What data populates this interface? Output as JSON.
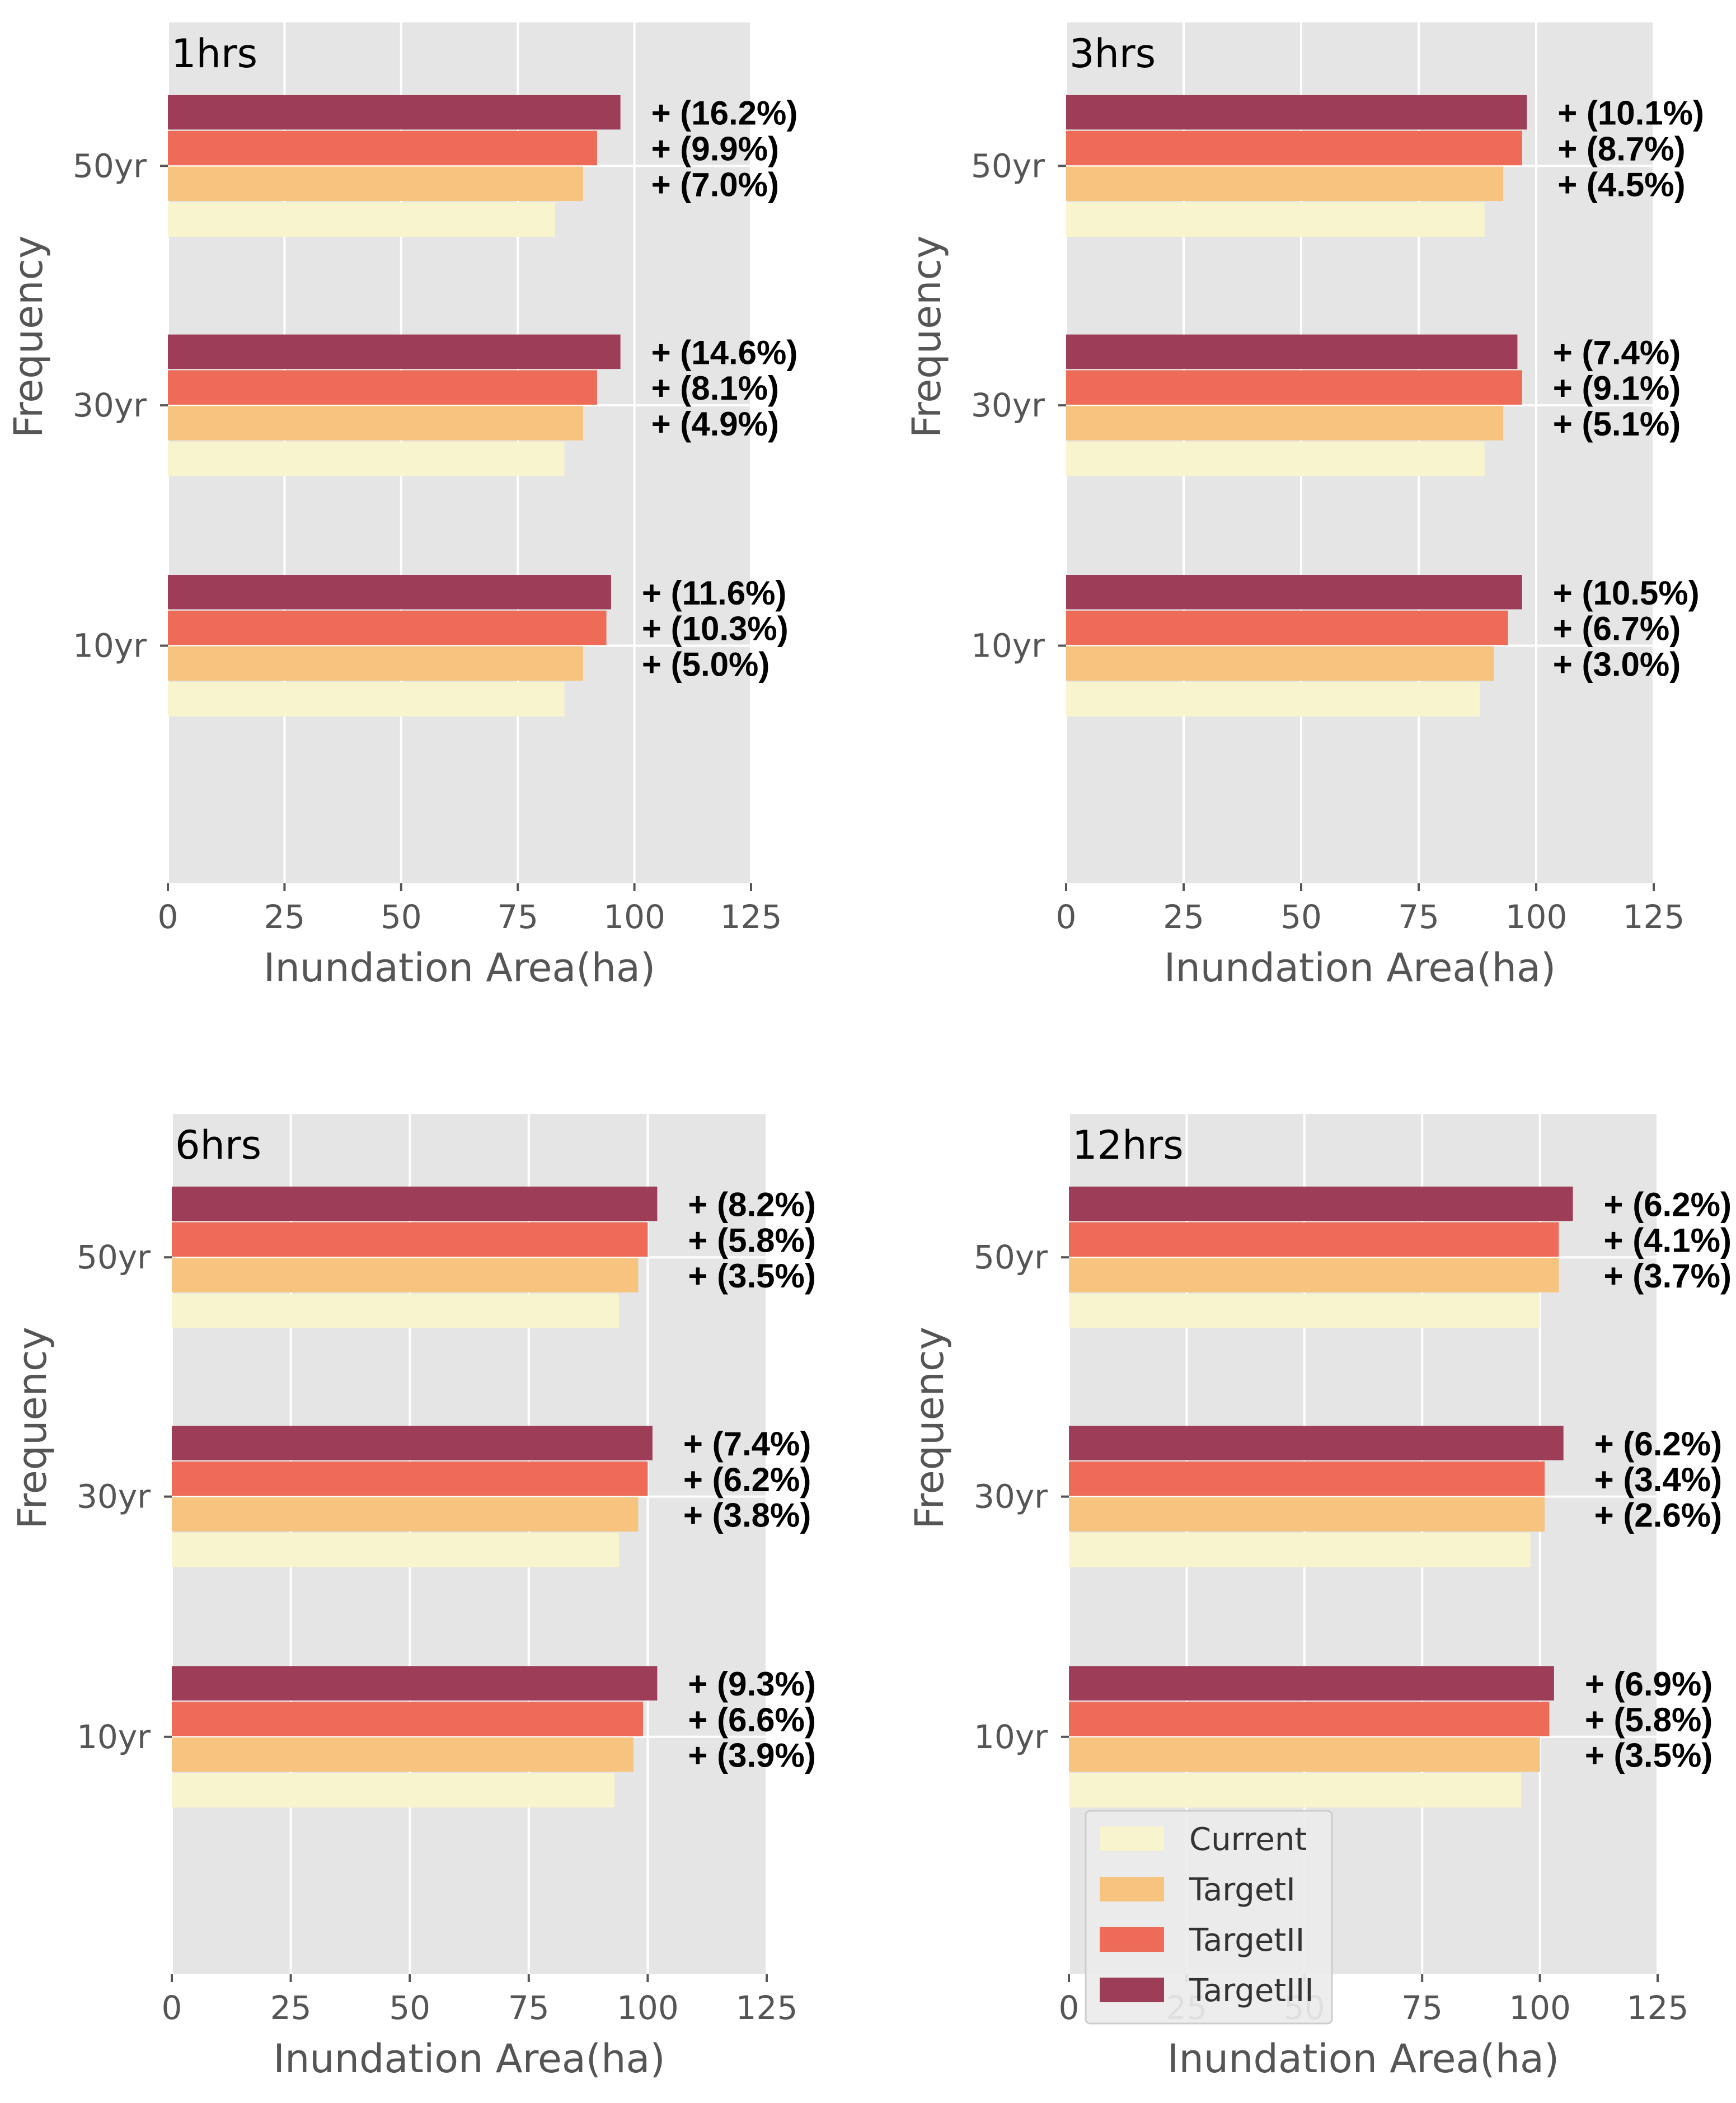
{
  "colors": {
    "panel_bg": "#e5e5e5",
    "grid": "#ffffff",
    "tick_text": "#555555",
    "label_text": "#000000",
    "series": {
      "Current": "#f7f4ce",
      "TargetI": "#f6c47f",
      "TargetII": "#ee6b57",
      "TargetIII": "#9e3d58"
    }
  },
  "chart_data": [
    {
      "type": "bar",
      "orientation": "horizontal",
      "title": "1hrs",
      "xlabel": "Inundation Area(ha)",
      "ylabel": "Frequency",
      "xlim": [
        0,
        125
      ],
      "xticks": [
        0,
        25,
        50,
        75,
        100,
        125
      ],
      "categories": [
        "10yr",
        "30yr",
        "50yr"
      ],
      "grid": true,
      "series": [
        {
          "name": "Current",
          "values": [
            85,
            85,
            83
          ]
        },
        {
          "name": "TargetI",
          "values": [
            89,
            89,
            89
          ]
        },
        {
          "name": "TargetII",
          "values": [
            94,
            92,
            92
          ]
        },
        {
          "name": "TargetIII",
          "values": [
            95,
            97,
            97
          ]
        }
      ],
      "annotations": [
        [
          "+ (5.0%)",
          "+ (10.3%)",
          "+ (11.6%)"
        ],
        [
          "+ (4.9%)",
          "+ (8.1%)",
          "+ (14.6%)"
        ],
        [
          "+ (7.0%)",
          "+ (9.9%)",
          "+ (16.2%)"
        ]
      ]
    },
    {
      "type": "bar",
      "orientation": "horizontal",
      "title": "3hrs",
      "xlabel": "Inundation Area(ha)",
      "ylabel": "Frequency",
      "xlim": [
        0,
        125
      ],
      "xticks": [
        0,
        25,
        50,
        75,
        100,
        125
      ],
      "categories": [
        "10yr",
        "30yr",
        "50yr"
      ],
      "grid": true,
      "series": [
        {
          "name": "Current",
          "values": [
            88,
            89,
            89
          ]
        },
        {
          "name": "TargetI",
          "values": [
            91,
            93,
            93
          ]
        },
        {
          "name": "TargetII",
          "values": [
            94,
            97,
            97
          ]
        },
        {
          "name": "TargetIII",
          "values": [
            97,
            96,
            98
          ]
        }
      ],
      "annotations": [
        [
          "+ (3.0%)",
          "+ (6.7%)",
          "+ (10.5%)"
        ],
        [
          "+ (5.1%)",
          "+ (9.1%)",
          "+ (7.4%)"
        ],
        [
          "+ (4.5%)",
          "+ (8.7%)",
          "+ (10.1%)"
        ]
      ]
    },
    {
      "type": "bar",
      "orientation": "horizontal",
      "title": "6hrs",
      "xlabel": "Inundation Area(ha)",
      "ylabel": "Frequency",
      "xlim": [
        0,
        125
      ],
      "xticks": [
        0,
        25,
        50,
        75,
        100,
        125
      ],
      "categories": [
        "10yr",
        "30yr",
        "50yr"
      ],
      "grid": true,
      "series": [
        {
          "name": "Current",
          "values": [
            93,
            94,
            94
          ]
        },
        {
          "name": "TargetI",
          "values": [
            97,
            98,
            98
          ]
        },
        {
          "name": "TargetII",
          "values": [
            99,
            100,
            100
          ]
        },
        {
          "name": "TargetIII",
          "values": [
            102,
            101,
            102
          ]
        }
      ],
      "annotations": [
        [
          "+ (3.9%)",
          "+ (6.6%)",
          "+ (9.3%)"
        ],
        [
          "+ (3.8%)",
          "+ (6.2%)",
          "+ (7.4%)"
        ],
        [
          "+ (3.5%)",
          "+ (5.8%)",
          "+ (8.2%)"
        ]
      ]
    },
    {
      "type": "bar",
      "orientation": "horizontal",
      "title": "12hrs",
      "xlabel": "Inundation Area(ha)",
      "ylabel": "Frequency",
      "xlim": [
        0,
        125
      ],
      "xticks": [
        0,
        25,
        50,
        75,
        100,
        125
      ],
      "categories": [
        "10yr",
        "30yr",
        "50yr"
      ],
      "grid": true,
      "legend": {
        "position": "lower-left",
        "entries": [
          "Current",
          "TargetI",
          "TargetII",
          "TargetIII"
        ]
      },
      "series": [
        {
          "name": "Current",
          "values": [
            96,
            98,
            100
          ]
        },
        {
          "name": "TargetI",
          "values": [
            100,
            101,
            104
          ]
        },
        {
          "name": "TargetII",
          "values": [
            102,
            101,
            104
          ]
        },
        {
          "name": "TargetIII",
          "values": [
            103,
            105,
            107
          ]
        }
      ],
      "annotations": [
        [
          "+ (3.5%)",
          "+ (5.8%)",
          "+ (6.9%)"
        ],
        [
          "+ (2.6%)",
          "+ (3.4%)",
          "+ (6.2%)"
        ],
        [
          "+ (3.7%)",
          "+ (4.1%)",
          "+ (6.2%)"
        ]
      ]
    }
  ]
}
